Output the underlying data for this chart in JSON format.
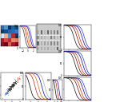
{
  "panels": {
    "A_heatmap": {
      "colors_top": [
        "#3a6db5",
        "#5588c8",
        "#7aaad0",
        "#adc8e0",
        "#e8d5c0",
        "#e8b090",
        "#c86040"
      ],
      "rows": 5,
      "cols": 5
    },
    "B_curves": {
      "colors": [
        "#333333",
        "#cc2200",
        "#dd6600",
        "#0000bb",
        "#5555cc"
      ],
      "shifts": [
        -1.2,
        -0.5,
        0.1,
        0.8,
        1.3
      ],
      "slope": 2.5
    },
    "C_wb": {
      "n_rows": 4,
      "n_cols": 7,
      "bg": "#e0e0e0"
    },
    "D_scatter": {
      "n_pts": 200,
      "main_color": "#222222",
      "highlight_colors": [
        "#2255cc",
        "#cc4422"
      ]
    },
    "E_curves": {
      "colors": [
        "#000000",
        "#cc2200",
        "#dd6600",
        "#0000bb",
        "#aaaaaa"
      ],
      "shifts": [
        -2.0,
        -0.8,
        0.0,
        0.8,
        1.5
      ],
      "slope": 2.5
    },
    "F1_curves": {
      "colors": [
        "#111111",
        "#8b0000",
        "#cc3300",
        "#0000aa",
        "#3333bb"
      ],
      "shifts": [
        -0.8,
        -0.1,
        0.4,
        1.0,
        1.5
      ],
      "slope": 2.5
    },
    "F2_curves": {
      "colors": [
        "#111111",
        "#8b0000",
        "#cc3300",
        "#0000aa",
        "#3333bb"
      ],
      "shifts": [
        -0.6,
        0.0,
        0.5,
        1.1,
        1.6
      ],
      "slope": 2.5
    },
    "F3_curves": {
      "colors": [
        "#111111",
        "#8b0000",
        "#cc3300",
        "#0000aa",
        "#3333bb"
      ],
      "shifts": [
        -0.7,
        0.1,
        0.6,
        1.2,
        1.7
      ],
      "slope": 2.5
    },
    "G_curves": {
      "colors": [
        "#000000",
        "#cc2200",
        "#0000bb"
      ],
      "shifts": [
        -1.5,
        -0.3,
        0.9
      ],
      "slope": 2.5
    }
  }
}
